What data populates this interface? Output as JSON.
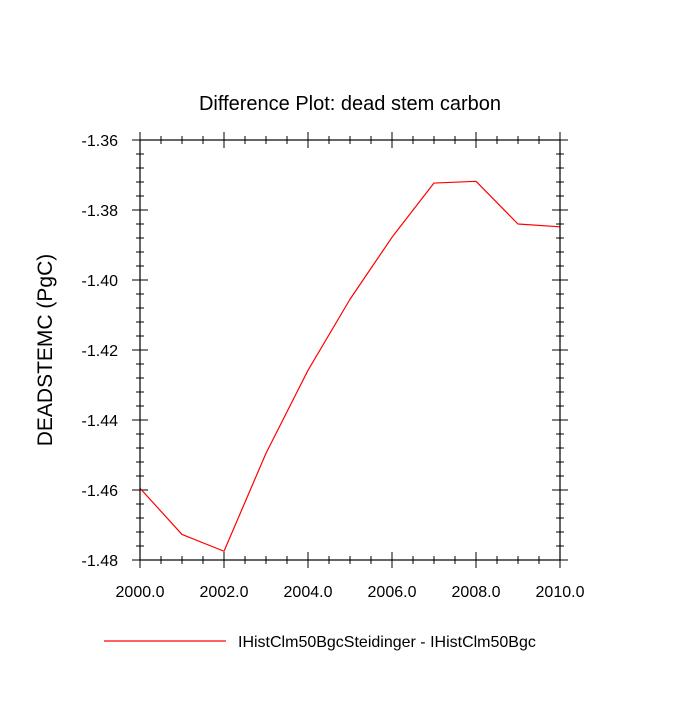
{
  "chart_data": {
    "type": "line",
    "title": "Difference Plot: dead stem carbon",
    "ylabel": "DEADSTEMC  (PgC)",
    "xlabel": "",
    "xlim": [
      2000,
      2010
    ],
    "ylim": [
      -1.48,
      -1.36
    ],
    "x_ticks": [
      2000,
      2002,
      2004,
      2006,
      2008,
      2010
    ],
    "x_tick_labels": [
      "2000.0",
      "2002.0",
      "2004.0",
      "2006.0",
      "2008.0",
      "2010.0"
    ],
    "y_ticks": [
      -1.48,
      -1.46,
      -1.44,
      -1.42,
      -1.4,
      -1.38,
      -1.36
    ],
    "y_tick_labels": [
      "-1.48",
      "-1.46",
      "-1.44",
      "-1.42",
      "-1.40",
      "-1.38",
      "-1.36"
    ],
    "grid": false,
    "legend_position": "bottom",
    "series": [
      {
        "name": "IHistClm50BgcSteidinger - IHistClm50Bgc",
        "color": "#ff0000",
        "x": [
          2000,
          2001,
          2002,
          2003,
          2004,
          2005,
          2006,
          2007,
          2008,
          2009,
          2010
        ],
        "y": [
          -1.4595,
          -1.4727,
          -1.4775,
          -1.4495,
          -1.4258,
          -1.4055,
          -1.3878,
          -1.3723,
          -1.3718,
          -1.384,
          -1.3848
        ]
      }
    ]
  }
}
